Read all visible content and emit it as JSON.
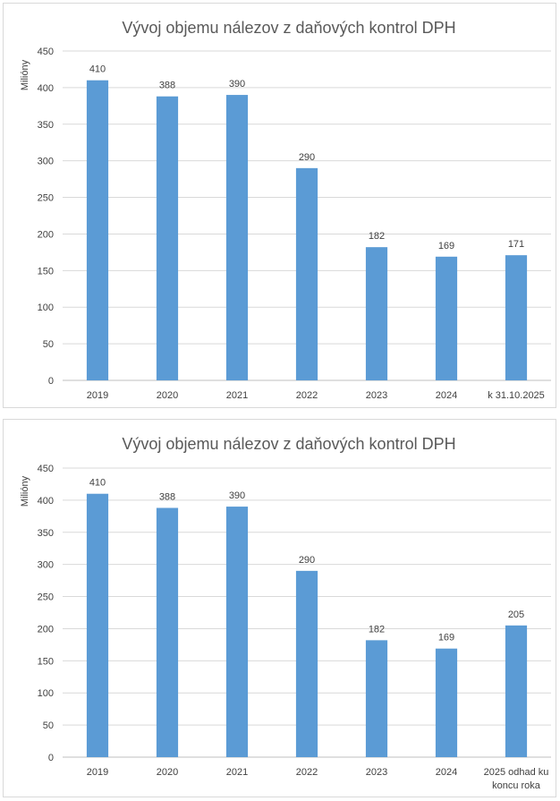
{
  "colors": {
    "bar": "#5b9bd5",
    "grid": "#d9d9d9",
    "text": "#404040",
    "title": "#595959"
  },
  "chart_data": [
    {
      "type": "bar",
      "title": "Vývoj objemu nálezov z daňových kontrol DPH",
      "xlabel": "",
      "ylabel": "Milióny",
      "ylim": [
        0,
        450
      ],
      "yticks": [
        0,
        50,
        100,
        150,
        200,
        250,
        300,
        350,
        400,
        450
      ],
      "grid": true,
      "categories": [
        [
          "2019"
        ],
        [
          "2020"
        ],
        [
          "2021"
        ],
        [
          "2022"
        ],
        [
          "2023"
        ],
        [
          "2024"
        ],
        [
          "k 31.10.2025"
        ]
      ],
      "values": [
        410,
        388,
        390,
        290,
        182,
        169,
        171
      ]
    },
    {
      "type": "bar",
      "title": "Vývoj objemu nálezov z daňových kontrol DPH",
      "xlabel": "",
      "ylabel": "Milióny",
      "ylim": [
        0,
        450
      ],
      "yticks": [
        0,
        50,
        100,
        150,
        200,
        250,
        300,
        350,
        400,
        450
      ],
      "grid": true,
      "categories": [
        [
          "2019"
        ],
        [
          "2020"
        ],
        [
          "2021"
        ],
        [
          "2022"
        ],
        [
          "2023"
        ],
        [
          "2024"
        ],
        [
          "2025 odhad ku",
          "koncu roka"
        ]
      ],
      "values": [
        410,
        388,
        390,
        290,
        182,
        169,
        205
      ]
    }
  ]
}
